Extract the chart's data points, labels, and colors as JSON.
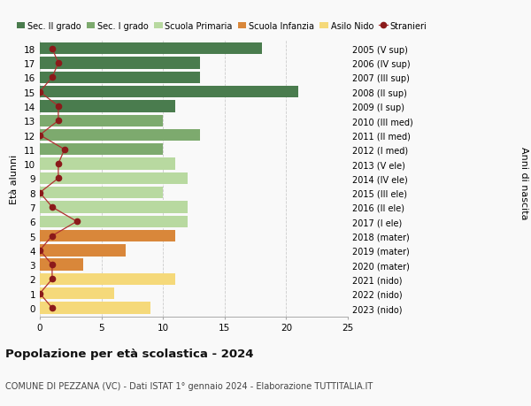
{
  "ages": [
    18,
    17,
    16,
    15,
    14,
    13,
    12,
    11,
    10,
    9,
    8,
    7,
    6,
    5,
    4,
    3,
    2,
    1,
    0
  ],
  "years": [
    "2005 (V sup)",
    "2006 (IV sup)",
    "2007 (III sup)",
    "2008 (II sup)",
    "2009 (I sup)",
    "2010 (III med)",
    "2011 (II med)",
    "2012 (I med)",
    "2013 (V ele)",
    "2014 (IV ele)",
    "2015 (III ele)",
    "2016 (II ele)",
    "2017 (I ele)",
    "2018 (mater)",
    "2019 (mater)",
    "2020 (mater)",
    "2021 (nido)",
    "2022 (nido)",
    "2023 (nido)"
  ],
  "bar_values": [
    18,
    13,
    13,
    21,
    11,
    10,
    13,
    10,
    11,
    12,
    10,
    12,
    12,
    11,
    7,
    3.5,
    11,
    6,
    9
  ],
  "bar_colors": [
    "#4a7c4e",
    "#4a7c4e",
    "#4a7c4e",
    "#4a7c4e",
    "#4a7c4e",
    "#7daa6e",
    "#7daa6e",
    "#7daa6e",
    "#b8d9a0",
    "#b8d9a0",
    "#b8d9a0",
    "#b8d9a0",
    "#b8d9a0",
    "#d9873a",
    "#d9873a",
    "#d9873a",
    "#f5d97a",
    "#f5d97a",
    "#f5d97a"
  ],
  "stranieri_values": [
    1,
    1.5,
    1,
    0,
    1.5,
    1.5,
    0,
    2,
    1.5,
    1.5,
    0,
    1,
    3,
    1,
    0,
    1,
    1,
    0,
    1
  ],
  "stranieri_color": "#8b1a1a",
  "stranieri_line_color": "#b03030",
  "legend_labels": [
    "Sec. II grado",
    "Sec. I grado",
    "Scuola Primaria",
    "Scuola Infanzia",
    "Asilo Nido",
    "Stranieri"
  ],
  "legend_colors": [
    "#4a7c4e",
    "#7daa6e",
    "#b8d9a0",
    "#d9873a",
    "#f5d97a",
    "#8b1a1a"
  ],
  "title": "Popolazione per età scolastica - 2024",
  "subtitle": "COMUNE DI PEZZANA (VC) - Dati ISTAT 1° gennaio 2024 - Elaborazione TUTTITALIA.IT",
  "ylabel": "Età alunni",
  "ylabel2": "Anni di nascita",
  "xlim": [
    0,
    25
  ],
  "xticks": [
    0,
    5,
    10,
    15,
    20,
    25
  ],
  "background_color": "#f9f9f9",
  "grid_color": "#cccccc"
}
